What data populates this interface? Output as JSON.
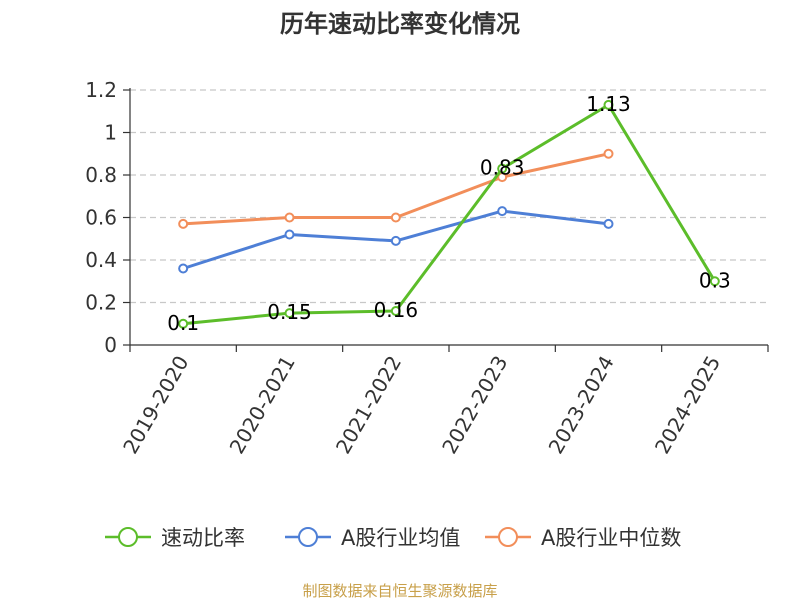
{
  "chart_data": {
    "type": "line",
    "title": "历年速动比率变化情况",
    "categories": [
      "2019-2020",
      "2020-2021",
      "2021-2022",
      "2022-2023",
      "2023-2024",
      "2024-2025"
    ],
    "ylim": [
      0,
      1.2
    ],
    "yticks": [
      "0",
      "0.2",
      "0.4",
      "0.6",
      "0.8",
      "1",
      "1.2"
    ],
    "grid": true,
    "legend_position": "bottom",
    "series": [
      {
        "name": "速动比率",
        "color": "#5cbd2a",
        "values": [
          0.1,
          0.15,
          0.16,
          0.83,
          1.13,
          0.3
        ],
        "labels": [
          "0.1",
          "0.15",
          "0.16",
          "0.83",
          "1.13",
          "0.3"
        ]
      },
      {
        "name": "A股行业均值",
        "color": "#4e7fd6",
        "values": [
          0.36,
          0.52,
          0.49,
          0.63,
          0.57,
          null
        ]
      },
      {
        "name": "A股行业中位数",
        "color": "#f28e5a",
        "values": [
          0.57,
          0.6,
          0.6,
          0.79,
          0.9,
          null
        ]
      }
    ]
  },
  "source": "制图数据来自恒生聚源数据库"
}
